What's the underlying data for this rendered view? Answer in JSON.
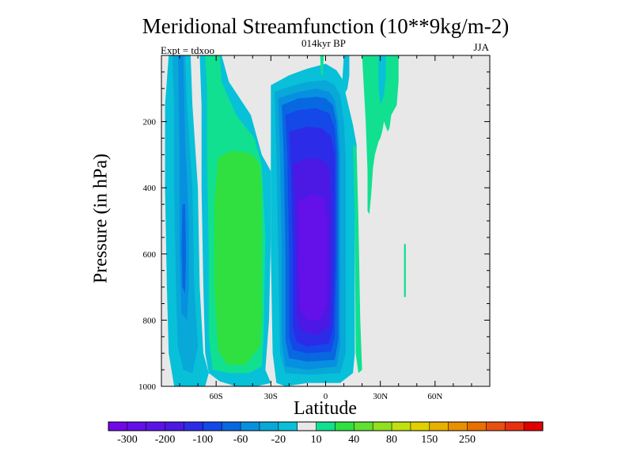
{
  "chart_data": {
    "type": "heatmap",
    "title": "Meridional Streamfunction (10**9kg/m-2)",
    "subtitle": "014kyr BP",
    "left_label": "Expt = tdxoo",
    "right_label": "JJA",
    "xlabel": "Latitude",
    "ylabel": "Pressure (in hPa)",
    "xlim": [
      -90,
      90
    ],
    "ylim": [
      1000,
      0
    ],
    "x_ticks": [
      {
        "value": -60,
        "label": "60S"
      },
      {
        "value": -30,
        "label": "30S"
      },
      {
        "value": 0,
        "label": "0"
      },
      {
        "value": 30,
        "label": "30N"
      },
      {
        "value": 60,
        "label": "60N"
      }
    ],
    "y_ticks": [
      {
        "value": 200,
        "label": "200"
      },
      {
        "value": 400,
        "label": "400"
      },
      {
        "value": 600,
        "label": "600"
      },
      {
        "value": 800,
        "label": "800"
      },
      {
        "value": 1000,
        "label": "1000"
      }
    ],
    "colorbar": {
      "colors": [
        "#7108e8",
        "#6410e8",
        "#5b14e8",
        "#4c18e4",
        "#2c2ce8",
        "#1448e8",
        "#0868e0",
        "#0890e0",
        "#08a8d8",
        "#08c0d8",
        "#e8e8e8",
        "#10e090",
        "#30e040",
        "#60e030",
        "#90e020",
        "#c0e010",
        "#e0d000",
        "#e8b000",
        "#e89000",
        "#e87000",
        "#e85010",
        "#e83010",
        "#e00000"
      ],
      "tick_labels": [
        "-300",
        "-200",
        "-100",
        "-60",
        "-20",
        "10",
        "40",
        "80",
        "150",
        "250"
      ]
    },
    "regions": [
      {
        "name": "southern-cyan-cell",
        "level": -20,
        "color": "#08c0d8",
        "points": [
          [
            -86,
            0
          ],
          [
            -74,
            0
          ],
          [
            -73,
            150
          ],
          [
            -70,
            400
          ],
          [
            -69,
            700
          ],
          [
            -67,
            900
          ],
          [
            -64,
            960
          ],
          [
            -66,
            1000
          ],
          [
            -83,
            1000
          ],
          [
            -86,
            900
          ],
          [
            -87,
            700
          ],
          [
            -88,
            400
          ],
          [
            -88,
            150
          ]
        ]
      },
      {
        "name": "southern-light-blue-cell",
        "level": -40,
        "color": "#08a8d8",
        "points": [
          [
            -84,
            0
          ],
          [
            -77,
            0
          ],
          [
            -76,
            150
          ],
          [
            -73,
            400
          ],
          [
            -72,
            700
          ],
          [
            -70,
            880
          ],
          [
            -73,
            960
          ],
          [
            -78,
            950
          ],
          [
            -81,
            880
          ],
          [
            -82,
            700
          ],
          [
            -83,
            400
          ],
          [
            -83,
            150
          ]
        ]
      },
      {
        "name": "southern-mid-blue-cell",
        "level": -60,
        "color": "#0890e0",
        "points": [
          [
            -81,
            0
          ],
          [
            -78,
            0
          ],
          [
            -77,
            250
          ],
          [
            -75,
            500
          ],
          [
            -75,
            700
          ],
          [
            -76,
            800
          ],
          [
            -79,
            780
          ],
          [
            -80,
            600
          ],
          [
            -80,
            300
          ]
        ]
      },
      {
        "name": "southern-blue-core",
        "level": -80,
        "color": "#0868e0",
        "points": [
          [
            -78.5,
            450
          ],
          [
            -77,
            450
          ],
          [
            -76.5,
            600
          ],
          [
            -77,
            720
          ],
          [
            -78.5,
            700
          ],
          [
            -79,
            580
          ]
        ]
      },
      {
        "name": "ferrel-cyan-band",
        "level": -20,
        "color": "#08c0d8",
        "points": [
          [
            -69,
            0
          ],
          [
            -57,
            0
          ],
          [
            -55,
            40
          ],
          [
            -53,
            80
          ],
          [
            -41,
            180
          ],
          [
            -35,
            300
          ],
          [
            -30,
            350
          ],
          [
            -30,
            550
          ],
          [
            -31,
            800
          ],
          [
            -33,
            950
          ],
          [
            -30,
            990
          ],
          [
            -38,
            1000
          ],
          [
            -49,
            1000
          ],
          [
            -58,
            985
          ],
          [
            -64,
            960
          ],
          [
            -66,
            900
          ],
          [
            -67,
            700
          ],
          [
            -68,
            400
          ],
          [
            -68,
            150
          ]
        ]
      },
      {
        "name": "ferrel-green-band",
        "level": 10,
        "color": "#10e090",
        "points": [
          [
            -66,
            0
          ],
          [
            -58,
            0
          ],
          [
            -57,
            80
          ],
          [
            -49,
            180
          ],
          [
            -39,
            250
          ],
          [
            -35,
            330
          ],
          [
            -33,
            550
          ],
          [
            -34,
            850
          ],
          [
            -35,
            940
          ],
          [
            -42,
            960
          ],
          [
            -53,
            960
          ],
          [
            -62,
            950
          ],
          [
            -64,
            850
          ],
          [
            -64,
            600
          ],
          [
            -65,
            300
          ],
          [
            -65,
            100
          ]
        ]
      },
      {
        "name": "ferrel-core",
        "level": 40,
        "color": "#30e040",
        "points": [
          [
            -59,
            310
          ],
          [
            -53,
            290
          ],
          [
            -46,
            290
          ],
          [
            -40,
            300
          ],
          [
            -36,
            330
          ],
          [
            -35,
            400
          ],
          [
            -35,
            800
          ],
          [
            -36,
            880
          ],
          [
            -44,
            935
          ],
          [
            -54,
            935
          ],
          [
            -59,
            890
          ],
          [
            -61,
            700
          ],
          [
            -61,
            450
          ]
        ]
      },
      {
        "name": "hadley-outer",
        "level": -20,
        "color": "#08c0d8",
        "points": [
          [
            -30,
            90
          ],
          [
            -20,
            60
          ],
          [
            -10,
            40
          ],
          [
            0,
            25
          ],
          [
            6,
            45
          ],
          [
            9,
            70
          ],
          [
            15,
            210
          ],
          [
            17,
            270
          ],
          [
            16,
            500
          ],
          [
            16,
            900
          ],
          [
            15,
            960
          ],
          [
            8,
            990
          ],
          [
            -10,
            990
          ],
          [
            -22,
            1000
          ],
          [
            -27,
            990
          ],
          [
            -29,
            900
          ],
          [
            -30,
            600
          ],
          [
            -30,
            350
          ]
        ]
      },
      {
        "name": "hadley-level-40",
        "level": -40,
        "color": "#08a8d8",
        "points": [
          [
            -28,
            110
          ],
          [
            -20,
            95
          ],
          [
            -10,
            80
          ],
          [
            0,
            75
          ],
          [
            5,
            90
          ],
          [
            8,
            120
          ],
          [
            10,
            200
          ],
          [
            11,
            300
          ],
          [
            11,
            600
          ],
          [
            11,
            900
          ],
          [
            8,
            960
          ],
          [
            -10,
            965
          ],
          [
            -22,
            960
          ],
          [
            -25,
            900
          ],
          [
            -26,
            600
          ],
          [
            -27,
            300
          ]
        ]
      },
      {
        "name": "hadley-level-60",
        "level": -60,
        "color": "#0890e0",
        "points": [
          [
            -26,
            130
          ],
          [
            -15,
            110
          ],
          [
            -5,
            100
          ],
          [
            2,
            110
          ],
          [
            5,
            135
          ],
          [
            7,
            200
          ],
          [
            8,
            300
          ],
          [
            8,
            600
          ],
          [
            8,
            880
          ],
          [
            6,
            940
          ],
          [
            -10,
            950
          ],
          [
            -22,
            940
          ],
          [
            -24,
            870
          ],
          [
            -24,
            600
          ],
          [
            -25,
            300
          ]
        ]
      },
      {
        "name": "hadley-level-80",
        "level": -80,
        "color": "#0868e0",
        "points": [
          [
            -24,
            150
          ],
          [
            -15,
            130
          ],
          [
            -5,
            125
          ],
          [
            0,
            130
          ],
          [
            4,
            150
          ],
          [
            6,
            200
          ],
          [
            7,
            300
          ],
          [
            7,
            600
          ],
          [
            7,
            860
          ],
          [
            5,
            920
          ],
          [
            -10,
            925
          ],
          [
            -20,
            915
          ],
          [
            -22,
            860
          ],
          [
            -22,
            600
          ],
          [
            -23,
            300
          ]
        ]
      },
      {
        "name": "hadley-level-100",
        "level": -100,
        "color": "#1448e8",
        "points": [
          [
            -22,
            180
          ],
          [
            -15,
            165
          ],
          [
            -5,
            160
          ],
          [
            2,
            175
          ],
          [
            5,
            220
          ],
          [
            6,
            300
          ],
          [
            6,
            600
          ],
          [
            5,
            850
          ],
          [
            3,
            895
          ],
          [
            -10,
            900
          ],
          [
            -18,
            890
          ],
          [
            -20,
            850
          ],
          [
            -20,
            600
          ],
          [
            -21,
            300
          ]
        ]
      },
      {
        "name": "hadley-level-150",
        "level": -150,
        "color": "#2c2ce8",
        "points": [
          [
            -20,
            230
          ],
          [
            -10,
            215
          ],
          [
            -2,
            220
          ],
          [
            3,
            245
          ],
          [
            5,
            300
          ],
          [
            5,
            600
          ],
          [
            4,
            820
          ],
          [
            2,
            870
          ],
          [
            -10,
            880
          ],
          [
            -16,
            865
          ],
          [
            -18,
            820
          ],
          [
            -18,
            600
          ],
          [
            -19,
            350
          ]
        ]
      },
      {
        "name": "hadley-level-200",
        "level": -200,
        "color": "#4c18e4",
        "points": [
          [
            -18,
            330
          ],
          [
            -10,
            310
          ],
          [
            -2,
            315
          ],
          [
            2,
            340
          ],
          [
            3,
            450
          ],
          [
            3,
            700
          ],
          [
            2,
            820
          ],
          [
            -5,
            845
          ],
          [
            -13,
            835
          ],
          [
            -16,
            790
          ],
          [
            -16,
            600
          ],
          [
            -17,
            420
          ]
        ]
      },
      {
        "name": "hadley-core",
        "level": -250,
        "color": "#6410e8",
        "points": [
          [
            -15,
            440
          ],
          [
            -7,
            420
          ],
          [
            -1,
            430
          ],
          [
            1,
            500
          ],
          [
            1,
            750
          ],
          [
            -3,
            800
          ],
          [
            -10,
            800
          ],
          [
            -14,
            770
          ],
          [
            -15,
            650
          ]
        ]
      },
      {
        "name": "equatorial-upper-green",
        "level": 10,
        "color": "#10e090",
        "points": [
          [
            -3,
            0
          ],
          [
            -1,
            0
          ],
          [
            -1.5,
            60
          ],
          [
            -2.5,
            60
          ]
        ]
      },
      {
        "name": "equatorial-upper-cyan",
        "level": -20,
        "color": "#08c0d8",
        "points": [
          [
            10,
            0
          ],
          [
            13,
            0
          ],
          [
            13,
            60
          ],
          [
            12,
            100
          ],
          [
            10,
            120
          ],
          [
            9,
            90
          ]
        ]
      },
      {
        "name": "northern-thin-green",
        "level": 10,
        "color": "#10e090",
        "points": [
          [
            15,
            270
          ],
          [
            17,
            280
          ],
          [
            18,
            500
          ],
          [
            19,
            800
          ],
          [
            20,
            950
          ],
          [
            18,
            960
          ],
          [
            16.5,
            900
          ],
          [
            16,
            500
          ]
        ]
      },
      {
        "name": "northern-upper-green",
        "level": 10,
        "color": "#10e090",
        "points": [
          [
            20,
            0
          ],
          [
            25,
            0
          ],
          [
            36,
            0
          ],
          [
            40,
            0
          ],
          [
            40,
            80
          ],
          [
            39,
            150
          ],
          [
            36,
            180
          ],
          [
            35,
            220
          ],
          [
            34,
            230
          ],
          [
            32,
            200
          ],
          [
            31,
            230
          ],
          [
            30,
            250
          ],
          [
            29,
            260
          ],
          [
            27,
            300
          ],
          [
            26,
            340
          ],
          [
            25,
            420
          ],
          [
            24,
            480
          ],
          [
            23,
            470
          ],
          [
            23,
            350
          ],
          [
            22,
            200
          ],
          [
            21,
            100
          ]
        ]
      },
      {
        "name": "northern-upper-cyan",
        "level": -20,
        "color": "#08c0d8",
        "points": [
          [
            29,
            0
          ],
          [
            33,
            0
          ],
          [
            33,
            60
          ],
          [
            32,
            120
          ],
          [
            30,
            150
          ],
          [
            29,
            90
          ]
        ]
      },
      {
        "name": "northern-green-sliver",
        "level": 10,
        "color": "#10e090",
        "points": [
          [
            43,
            570
          ],
          [
            44,
            570
          ],
          [
            44,
            730
          ],
          [
            43,
            730
          ]
        ]
      }
    ]
  }
}
